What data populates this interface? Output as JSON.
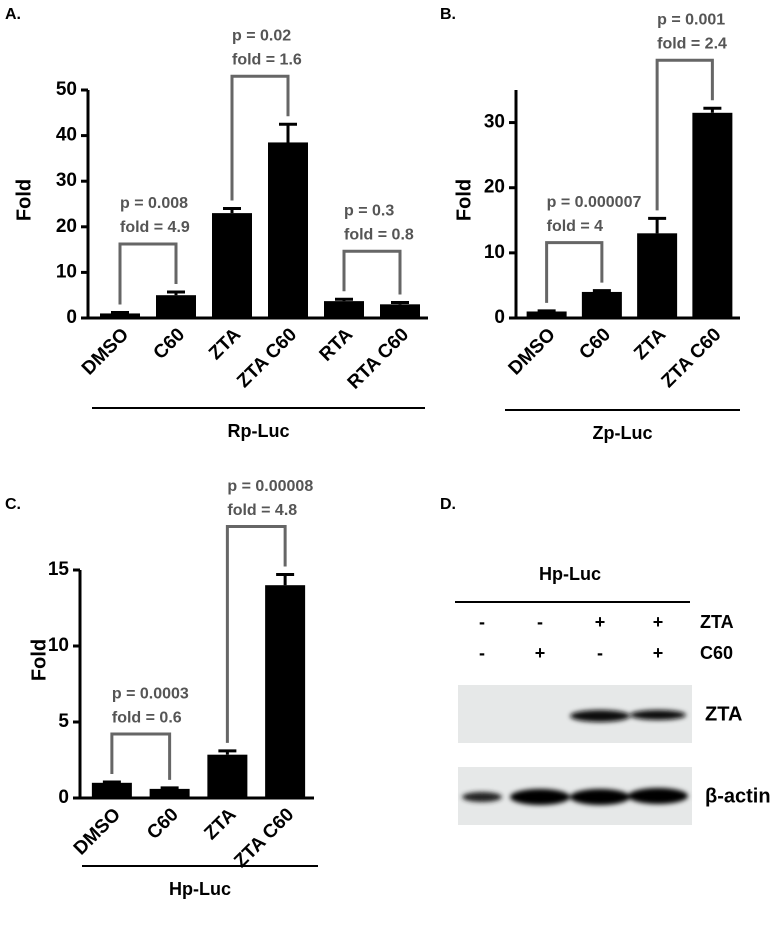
{
  "chart_data": [
    {
      "type": "bar",
      "title": "A.",
      "y_label": "Fold",
      "group_label": "Rp-Luc",
      "color": "#000000",
      "categories": [
        "DMSO",
        "C60",
        "ZTA",
        "ZTA C60",
        "RTA",
        "RTA C60"
      ],
      "values": [
        1,
        5,
        23,
        38.5,
        3.7,
        3
      ],
      "errors": [
        0.2,
        0.7,
        1,
        4,
        0.4,
        0.4
      ],
      "ylim": [
        0,
        50
      ],
      "yticks": [
        0,
        10,
        20,
        30,
        40,
        50
      ],
      "annotations": [
        {
          "p": "p = 0.008",
          "fold": "fold = 4.9"
        },
        {
          "p": "p = 0.02",
          "fold": "fold = 1.6"
        },
        {
          "p": "p = 0.3",
          "fold": "fold = 0.8"
        }
      ]
    },
    {
      "type": "bar",
      "title": "B.",
      "y_label": "Fold",
      "group_label": "Zp-Luc",
      "color": "#000000",
      "categories": [
        "DMSO",
        "C60",
        "ZTA",
        "ZTA C60"
      ],
      "values": [
        1,
        4,
        13,
        31.5
      ],
      "errors": [
        0.1,
        0.2,
        2.3,
        0.7
      ],
      "ylim": [
        0,
        35
      ],
      "yticks": [
        0,
        10,
        20,
        30
      ],
      "annotations": [
        {
          "p": "p = 0.000007",
          "fold": "fold = 4"
        },
        {
          "p": "p = 0.001",
          "fold": "fold = 2.4"
        }
      ]
    },
    {
      "type": "bar",
      "title": "C.",
      "y_label": "Fold",
      "group_label": "Hp-Luc",
      "color": "#000000",
      "categories": [
        "DMSO",
        "C60",
        "ZTA",
        "ZTA C60"
      ],
      "values": [
        1,
        0.6,
        2.85,
        14
      ],
      "errors": [
        0.05,
        0.07,
        0.25,
        0.7
      ],
      "ylim": [
        0,
        15
      ],
      "yticks": [
        0,
        5,
        10,
        15
      ],
      "annotations": [
        {
          "p": "p = 0.0003",
          "fold": "fold = 0.6"
        },
        {
          "p": "p = 0.00008",
          "fold": "fold = 4.8"
        }
      ]
    }
  ],
  "blot": {
    "title": "D.",
    "header": "Hp-Luc",
    "conditions": [
      {
        "label": "ZTA",
        "signs": [
          "-",
          "-",
          "+",
          "+"
        ]
      },
      {
        "label": "C60",
        "signs": [
          "-",
          "+",
          "-",
          "+"
        ]
      }
    ],
    "bands": [
      {
        "label": "ZTA"
      },
      {
        "label": "β-actin"
      }
    ]
  }
}
